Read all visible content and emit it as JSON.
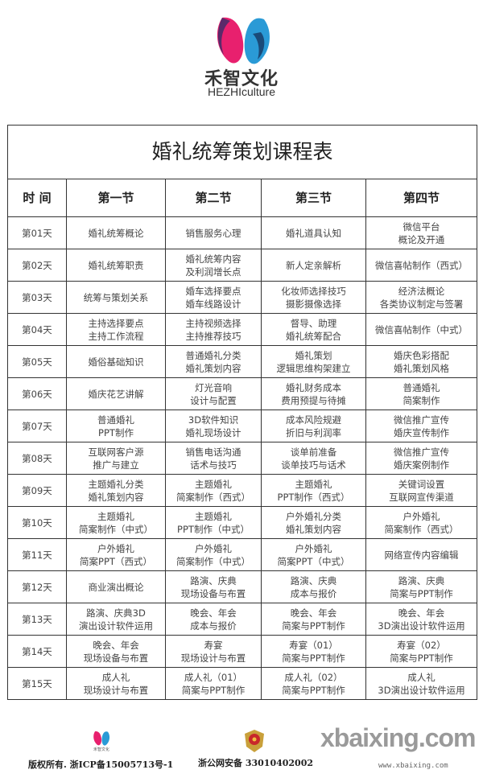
{
  "brand": {
    "name_cn": "禾智文化",
    "name_en": "HEZHIculture",
    "colors": {
      "pink": "#e8206e",
      "purple": "#5a2a6a",
      "blue": "#2a9ad6",
      "navy": "#1a4a78"
    }
  },
  "table": {
    "title": "婚礼统筹策划课程表",
    "headers": [
      "时 间",
      "第一节",
      "第二节",
      "第三节",
      "第四节"
    ],
    "rows": [
      [
        "第01天",
        [
          "婚礼统筹概论"
        ],
        [
          "销售服务心理"
        ],
        [
          "婚礼道具认知"
        ],
        [
          "微信平台",
          "概论及开通"
        ]
      ],
      [
        "第02天",
        [
          "婚礼统筹职责"
        ],
        [
          "婚礼统筹内容",
          "及利润增长点"
        ],
        [
          "新人定亲解析"
        ],
        [
          "微信喜帖制作（西式）"
        ]
      ],
      [
        "第03天",
        [
          "统筹与策划关系"
        ],
        [
          "婚车选择要点",
          "婚车线路设计"
        ],
        [
          "化妆师选择技巧",
          "摄影摄像选择"
        ],
        [
          "经济法概论",
          "各类协议制定与签署"
        ]
      ],
      [
        "第04天",
        [
          "主持选择要点",
          "主持工作流程"
        ],
        [
          "主持视频选择",
          "主持推荐技巧"
        ],
        [
          "督导、助理",
          "婚礼统筹配合"
        ],
        [
          "微信喜帖制作（中式）"
        ]
      ],
      [
        "第05天",
        [
          "婚俗基础知识"
        ],
        [
          "普通婚礼分类",
          "婚礼策划内容"
        ],
        [
          "婚礼策划",
          "逻辑思维构架建立"
        ],
        [
          "婚庆色彩搭配",
          "婚礼策划风格"
        ]
      ],
      [
        "第06天",
        [
          "婚庆花艺讲解"
        ],
        [
          "灯光音响",
          "设计与配置"
        ],
        [
          "婚礼财务成本",
          "费用预提与待摊"
        ],
        [
          "普通婚礼",
          "简案制作"
        ]
      ],
      [
        "第07天",
        [
          "普通婚礼",
          "PPT制作"
        ],
        [
          "3D软件知识",
          "婚礼现场设计"
        ],
        [
          "成本风险规避",
          "折旧与利润率"
        ],
        [
          "微信推广宣传",
          "婚庆宣传制作"
        ]
      ],
      [
        "第08天",
        [
          "互联网客户源",
          "推广与建立"
        ],
        [
          "销售电话沟通",
          "话术与技巧"
        ],
        [
          "谈单前准备",
          "谈单技巧与话术"
        ],
        [
          "微信推广宣传",
          "婚庆案例制作"
        ]
      ],
      [
        "第09天",
        [
          "主题婚礼分类",
          "婚礼策划内容"
        ],
        [
          "主题婚礼",
          "简案制作（西式）"
        ],
        [
          "主题婚礼",
          "PPT制作（西式）"
        ],
        [
          "关键词设置",
          "互联网宣传渠道"
        ]
      ],
      [
        "第10天",
        [
          "主题婚礼",
          "简案制作（中式）"
        ],
        [
          "主题婚礼",
          "PPT制作（中式）"
        ],
        [
          "户外婚礼分类",
          "婚礼策划内容"
        ],
        [
          "户外婚礼",
          "简案制作（西式）"
        ]
      ],
      [
        "第11天",
        [
          "户外婚礼",
          "简案PPT（西式）"
        ],
        [
          "户外婚礼",
          "简案制作（中式）"
        ],
        [
          "户外婚礼",
          "简案PPT（中式）"
        ],
        [
          "网络宣传内容编辑"
        ]
      ],
      [
        "第12天",
        [
          "商业演出概论"
        ],
        [
          "路演、庆典",
          "现场设备与布置"
        ],
        [
          "路演、庆典",
          "成本与报价"
        ],
        [
          "路演、庆典",
          "简案与PPT制作"
        ]
      ],
      [
        "第13天",
        [
          "路演、庆典3D",
          "演出设计软件运用"
        ],
        [
          "晚会、年会",
          "成本与报价"
        ],
        [
          "晚会、年会",
          "简案与PPT制作"
        ],
        [
          "晚会、年会",
          "3D演出设计软件运用"
        ]
      ],
      [
        "第14天",
        [
          "晚会、年会",
          "现场设备与布置"
        ],
        [
          "寿宴",
          "现场设计与布置"
        ],
        [
          "寿宴（01）",
          "简案与PPT制作"
        ],
        [
          "寿宴（02）",
          "简案与PPT制作"
        ]
      ],
      [
        "第15天",
        [
          "成人礼",
          "现场设计与布置"
        ],
        [
          "成人礼（01）",
          "简案与PPT制作"
        ],
        [
          "成人礼（02）",
          "简案与PPT制作"
        ],
        [
          "成人礼",
          "3D演出设计软件运用"
        ]
      ]
    ]
  },
  "footer": {
    "logo_text": "禾智文化",
    "copyright": "版权所有. 浙ICP备15005713号-1",
    "police_record": "浙公网安备 33010402002",
    "watermark": "xbaixing.com",
    "watermark_url": "www.xbaixing.com"
  }
}
